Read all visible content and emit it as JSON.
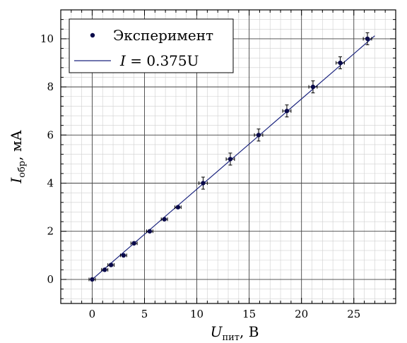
{
  "chart_data": {
    "type": "scatter",
    "title": "",
    "xlabel": {
      "symbol": "U",
      "sub": "пит",
      "unit": ", В"
    },
    "ylabel": {
      "symbol": "I",
      "sub": "обр",
      "unit": ", мА"
    },
    "xlim": [
      -3,
      29
    ],
    "ylim": [
      -1.0,
      11.2
    ],
    "x_ticks": [
      0,
      5,
      10,
      15,
      20,
      25
    ],
    "y_ticks": [
      0,
      2,
      4,
      6,
      8,
      10
    ],
    "x_tick_labels": [
      "0",
      "5",
      "10",
      "15",
      "20",
      "25"
    ],
    "y_tick_labels": [
      "0",
      "2",
      "4",
      "6",
      "8",
      "10"
    ],
    "grid": true,
    "legend_position": "top-left",
    "colors": {
      "marker": "#0a0a4a",
      "fit_line": "#1a237e",
      "major_grid": "#444444",
      "minor_grid": "#cfcfcf"
    },
    "series": [
      {
        "name": "Эксперимент",
        "kind": "points_with_errorbars",
        "x": [
          0.0,
          1.2,
          1.8,
          3.0,
          4.0,
          5.5,
          6.9,
          8.2,
          10.6,
          13.2,
          15.9,
          18.6,
          21.1,
          23.7,
          26.3
        ],
        "y": [
          0.0,
          0.4,
          0.6,
          1.0,
          1.5,
          2.0,
          2.5,
          3.0,
          4.0,
          5.0,
          6.0,
          7.0,
          8.0,
          9.0,
          10.0
        ],
        "xerr": [
          0.3,
          0.3,
          0.3,
          0.3,
          0.3,
          0.3,
          0.3,
          0.3,
          0.4,
          0.4,
          0.4,
          0.4,
          0.4,
          0.4,
          0.4
        ],
        "yerr": [
          0.0,
          0.05,
          0.05,
          0.05,
          0.05,
          0.05,
          0.05,
          0.05,
          0.25,
          0.25,
          0.25,
          0.25,
          0.25,
          0.25,
          0.25
        ]
      },
      {
        "name": "I = 0.375U",
        "kind": "line",
        "x": [
          0,
          27
        ],
        "y": [
          0,
          10.125
        ]
      }
    ],
    "legend": {
      "entries": [
        {
          "label": "Эксперимент",
          "marker": "point"
        },
        {
          "label_lhs": "I",
          "label_rhs": " = 0.375U",
          "marker": "line"
        }
      ]
    }
  }
}
